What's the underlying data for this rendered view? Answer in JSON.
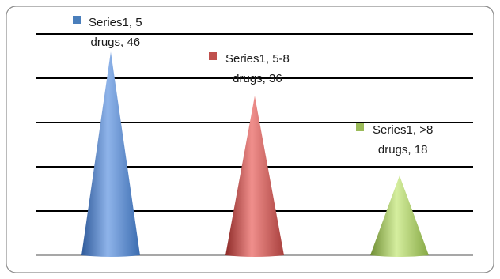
{
  "chart_data": {
    "type": "bar",
    "shape": "cone",
    "categories": [
      "5 drugs",
      "5-8 drugs",
      ">8 drugs"
    ],
    "series": [
      {
        "name": "Series1",
        "values": [
          46,
          36,
          18
        ]
      }
    ],
    "ylim": [
      0,
      50
    ],
    "grid": true,
    "colors": [
      "#4a7ebb",
      "#c0504d",
      "#9bbb59"
    ],
    "data_labels": [
      {
        "line1": "Series1, 5",
        "line2": "drugs, 46"
      },
      {
        "line1": "Series1, 5-8",
        "line2": "drugs, 36"
      },
      {
        "line1": "Series1, >8",
        "line2": "drugs, 18"
      }
    ]
  }
}
